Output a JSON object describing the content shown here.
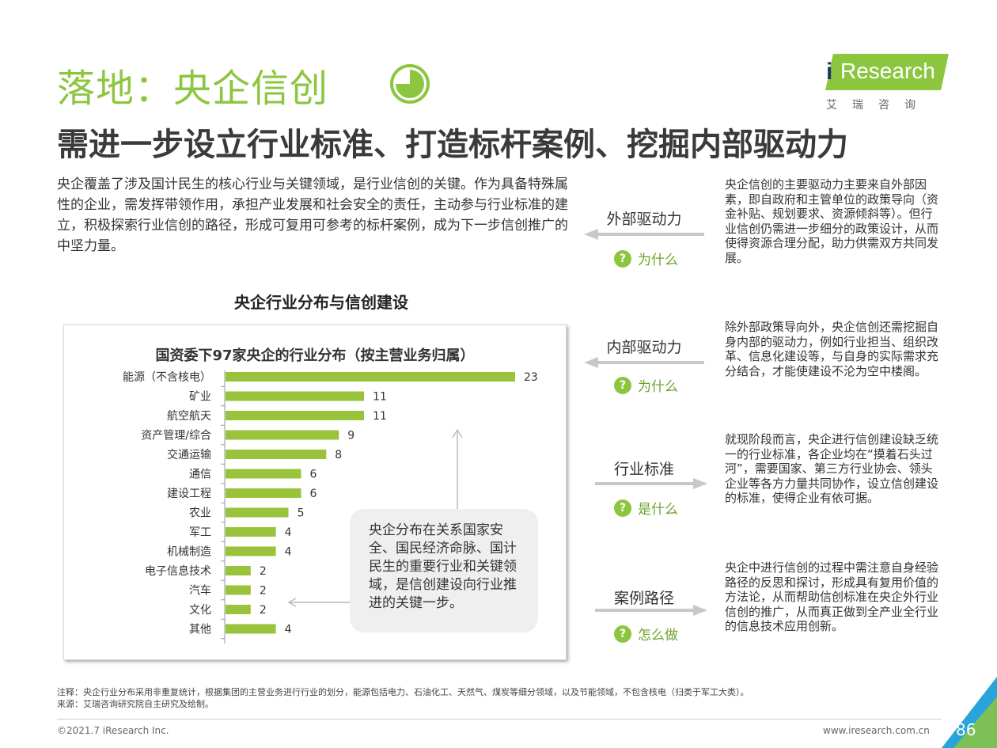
{
  "title": "落地：央企信创",
  "subtitle": "需进一步设立行业标准、打造标杆案例、挖掘内部驱动力",
  "logo": {
    "i": "i",
    "brand": "Research",
    "cn": "艾瑞咨询"
  },
  "intro": "央企覆盖了涉及国计民生的核心行业与关键领域，是行业信创的关键。作为具备特殊属性的企业，需发挥带领作用，承担产业发展和社会安全的责任，主动参与行业标准的建立，积极探索行业信创的路径，形成可复用可参考的标杆案例，成为下一步信创推广的中坚力量。",
  "chart_section_title": "央企行业分布与信创建设",
  "chart_data": {
    "type": "bar",
    "orientation": "horizontal",
    "title": "国资委下97家央企的行业分布（按主营业务归属）",
    "categories": [
      "能源（不含核电）",
      "矿业",
      "航空航天",
      "资产管理/综合",
      "交通运输",
      "通信",
      "建设工程",
      "农业",
      "军工",
      "机械制造",
      "电子信息技术",
      "汽车",
      "文化",
      "其他"
    ],
    "values": [
      23,
      11,
      11,
      9,
      8,
      6,
      6,
      5,
      4,
      4,
      2,
      2,
      2,
      4
    ],
    "xlim": [
      0,
      23
    ],
    "bar_color": "#99c33b",
    "grid": false,
    "legend": "none"
  },
  "chart_note": "央企分布在关系国家安全、国民经济命脉、国计民生的重要行业和关键领域，是信创建设向行业推进的关键一步。",
  "drivers": [
    {
      "label": "外部驱动力",
      "question": "为什么",
      "direction": "left",
      "text": "央企信创的主要驱动力主要来自外部因素，即自政府和主管单位的政策导向（资金补贴、规划要求、资源倾斜等）。但行业信创仍需进一步细分的政策设计，从而使得资源合理分配，助力供需双方共同发展。"
    },
    {
      "label": "内部驱动力",
      "question": "为什么",
      "direction": "left",
      "text": "除外部政策导向外，央企信创还需挖掘自身内部的驱动力，例如行业担当、组织改革、信息化建设等，与自身的实际需求充分结合，才能使建设不沦为空中楼阁。"
    },
    {
      "label": "行业标准",
      "question": "是什么",
      "direction": "right",
      "text": "就现阶段而言，央企进行信创建设缺乏统一的行业标准，各企业均在“摸着石头过河”，需要国家、第三方行业协会、领头企业等各方力量共同协作，设立信创建设的标准，使得企业有依可据。"
    },
    {
      "label": "案例路径",
      "question": "怎么做",
      "direction": "right",
      "text": "央企中进行信创的过程中需注意自身经验路径的反思和探讨，形成具有复用价值的方法论，从而帮助信创标准在央企外行业信创的推广，从而真正做到全产业全行业的信息技术应用创新。"
    }
  ],
  "question_mark": "?",
  "footnote": "注释：央企行业分布采用非重复统计，根据集团的主营业务进行行业的划分，能源包括电力、石油化工、天然气、煤炭等细分领域，以及节能领域，不包含核电（归类于军工大类）。",
  "source": "来源：艾瑞咨询研究院自主研究及绘制。",
  "copyright": "©2021.7 iResearch Inc.",
  "website": "www.iresearch.com.cn",
  "page_number": "86",
  "colors": {
    "accent_green": "#8cc63f",
    "bar_green": "#99c33b",
    "page_corner_blue": "#29a3d9",
    "arrow_gray": "#c8c8c8"
  }
}
